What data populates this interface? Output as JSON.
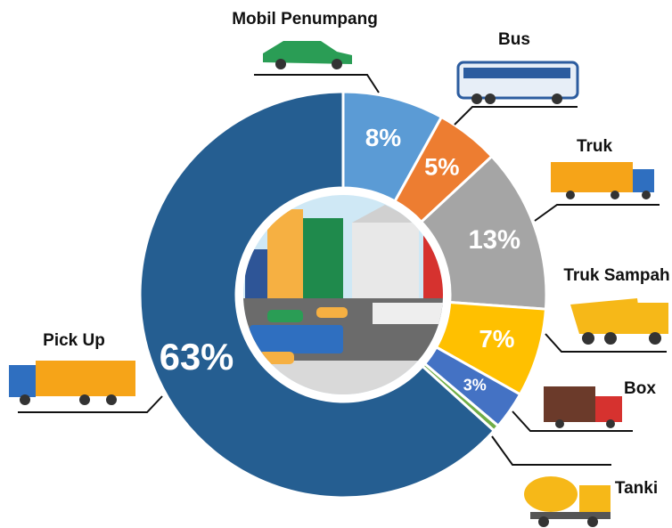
{
  "chart_data": {
    "type": "donut",
    "categories": [
      "Mobil Penumpang",
      "Bus",
      "Truk",
      "Truk Sampah",
      "Box",
      "Tanki",
      "Pick Up"
    ],
    "values": [
      8,
      5,
      13,
      7,
      3,
      0.5,
      63
    ],
    "value_labels": [
      "8%",
      "5%",
      "13%",
      "7%",
      "3%",
      null,
      "63%"
    ],
    "colors": [
      "#5b9bd5",
      "#ed7d31",
      "#a5a5a5",
      "#ffc000",
      "#4472c4",
      "#70ad47",
      "#255e91"
    ]
  }
}
